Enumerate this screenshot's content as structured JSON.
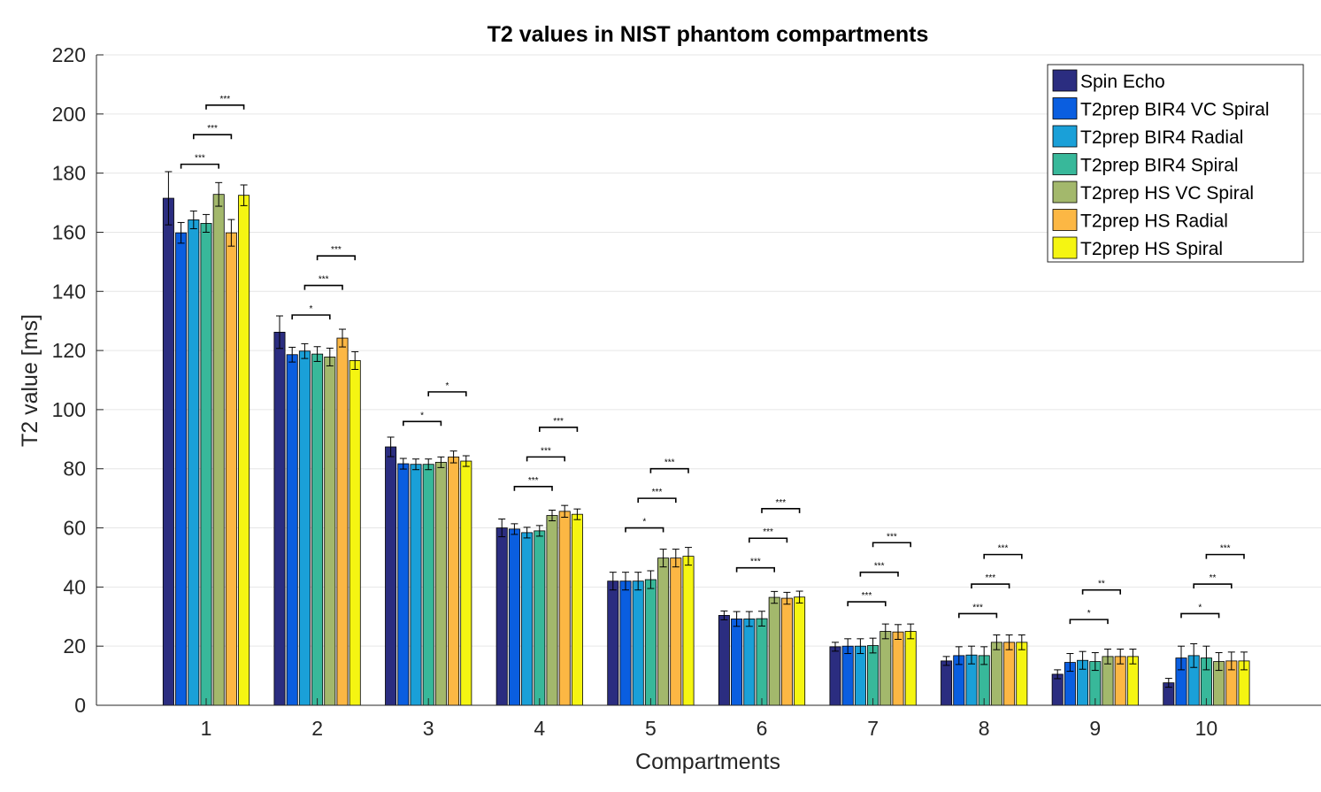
{
  "chart_data": {
    "type": "bar",
    "title": "T2 values in NIST phantom compartments",
    "xlabel": "Compartments",
    "ylabel": "T2 value [ms]",
    "ylim": [
      0,
      220
    ],
    "yticks": [
      "0",
      "20",
      "40",
      "60",
      "80",
      "100",
      "120",
      "140",
      "160",
      "180",
      "200",
      "220"
    ],
    "grid": true,
    "legend_position": "top-right",
    "categories": [
      "1",
      "2",
      "3",
      "4",
      "5",
      "6",
      "7",
      "8",
      "9",
      "10"
    ],
    "series": [
      {
        "name": "Spin Echo",
        "color": "#2b2d80",
        "values": [
          171.5,
          126.2,
          87.4,
          60.0,
          42.0,
          30.4,
          19.8,
          15.0,
          10.5,
          7.6
        ],
        "errors": [
          9.0,
          5.5,
          3.3,
          3.0,
          3.0,
          1.5,
          1.5,
          1.5,
          1.5,
          1.5
        ]
      },
      {
        "name": "T2prep BIR4 VC Spiral",
        "color": "#0a5ee0",
        "values": [
          159.8,
          118.6,
          81.7,
          59.6,
          42.0,
          29.2,
          20.0,
          16.8,
          14.5,
          16.0
        ],
        "errors": [
          3.5,
          2.5,
          1.8,
          1.8,
          3.0,
          2.5,
          2.5,
          3.0,
          3.0,
          4.0
        ]
      },
      {
        "name": "T2prep BIR4 Radial",
        "color": "#1aa0d8",
        "values": [
          164.2,
          119.8,
          81.5,
          58.4,
          42.0,
          29.2,
          20.0,
          17.0,
          15.2,
          16.8
        ],
        "errors": [
          3.0,
          2.5,
          1.8,
          1.8,
          3.0,
          2.5,
          2.5,
          3.0,
          3.0,
          4.0
        ]
      },
      {
        "name": "T2prep BIR4 Spiral",
        "color": "#38b89a",
        "values": [
          163.0,
          118.8,
          81.5,
          59.0,
          42.5,
          29.3,
          20.2,
          16.8,
          14.8,
          16.0
        ],
        "errors": [
          3.0,
          2.5,
          1.8,
          1.8,
          3.0,
          2.5,
          2.5,
          3.0,
          3.0,
          4.0
        ]
      },
      {
        "name": "T2prep HS VC Spiral",
        "color": "#a3b86c",
        "values": [
          172.8,
          117.8,
          82.2,
          64.2,
          49.8,
          36.5,
          25.0,
          21.3,
          16.5,
          14.8
        ],
        "errors": [
          4.0,
          3.0,
          1.8,
          1.8,
          3.0,
          2.0,
          2.5,
          2.5,
          2.5,
          3.0
        ]
      },
      {
        "name": "T2prep HS Radial",
        "color": "#fcb744",
        "values": [
          159.8,
          124.2,
          84.0,
          65.6,
          49.8,
          36.2,
          24.8,
          21.3,
          16.5,
          15.0
        ],
        "errors": [
          4.5,
          3.0,
          2.0,
          2.0,
          3.0,
          2.0,
          2.5,
          2.5,
          2.5,
          3.0
        ]
      },
      {
        "name": "T2prep HS Spiral",
        "color": "#f5f512",
        "values": [
          172.5,
          116.6,
          82.6,
          64.6,
          50.4,
          36.6,
          25.0,
          21.3,
          16.5,
          15.0
        ],
        "errors": [
          3.5,
          3.0,
          1.8,
          1.8,
          3.0,
          2.0,
          2.5,
          2.5,
          2.5,
          3.0
        ]
      }
    ],
    "significance": [
      {
        "category": 0,
        "from": 1,
        "to": 4,
        "y": 183,
        "label": "***"
      },
      {
        "category": 0,
        "from": 2,
        "to": 5,
        "y": 193,
        "label": "***"
      },
      {
        "category": 0,
        "from": 3,
        "to": 6,
        "y": 203,
        "label": "***"
      },
      {
        "category": 1,
        "from": 1,
        "to": 4,
        "y": 132,
        "label": "*"
      },
      {
        "category": 1,
        "from": 2,
        "to": 5,
        "y": 142,
        "label": "***"
      },
      {
        "category": 1,
        "from": 3,
        "to": 6,
        "y": 152,
        "label": "***"
      },
      {
        "category": 2,
        "from": 1,
        "to": 4,
        "y": 96,
        "label": "*"
      },
      {
        "category": 2,
        "from": 3,
        "to": 6,
        "y": 106,
        "label": "*"
      },
      {
        "category": 3,
        "from": 1,
        "to": 4,
        "y": 74,
        "label": "***"
      },
      {
        "category": 3,
        "from": 2,
        "to": 5,
        "y": 84,
        "label": "***"
      },
      {
        "category": 3,
        "from": 3,
        "to": 6,
        "y": 94,
        "label": "***"
      },
      {
        "category": 4,
        "from": 1,
        "to": 4,
        "y": 60,
        "label": "*"
      },
      {
        "category": 4,
        "from": 2,
        "to": 5,
        "y": 70,
        "label": "***"
      },
      {
        "category": 4,
        "from": 3,
        "to": 6,
        "y": 80,
        "label": "***"
      },
      {
        "category": 5,
        "from": 1,
        "to": 4,
        "y": 46.5,
        "label": "***"
      },
      {
        "category": 5,
        "from": 2,
        "to": 5,
        "y": 56.5,
        "label": "***"
      },
      {
        "category": 5,
        "from": 3,
        "to": 6,
        "y": 66.5,
        "label": "***"
      },
      {
        "category": 6,
        "from": 1,
        "to": 4,
        "y": 35,
        "label": "***"
      },
      {
        "category": 6,
        "from": 2,
        "to": 5,
        "y": 45,
        "label": "***"
      },
      {
        "category": 6,
        "from": 3,
        "to": 6,
        "y": 55,
        "label": "***"
      },
      {
        "category": 7,
        "from": 1,
        "to": 4,
        "y": 31,
        "label": "***"
      },
      {
        "category": 7,
        "from": 2,
        "to": 5,
        "y": 41,
        "label": "***"
      },
      {
        "category": 7,
        "from": 3,
        "to": 6,
        "y": 51,
        "label": "***"
      },
      {
        "category": 8,
        "from": 1,
        "to": 4,
        "y": 29,
        "label": "*"
      },
      {
        "category": 8,
        "from": 2,
        "to": 5,
        "y": 39,
        "label": "**"
      },
      {
        "category": 9,
        "from": 1,
        "to": 4,
        "y": 31,
        "label": "*"
      },
      {
        "category": 9,
        "from": 2,
        "to": 5,
        "y": 41,
        "label": "**"
      },
      {
        "category": 9,
        "from": 3,
        "to": 6,
        "y": 51,
        "label": "***"
      }
    ]
  }
}
